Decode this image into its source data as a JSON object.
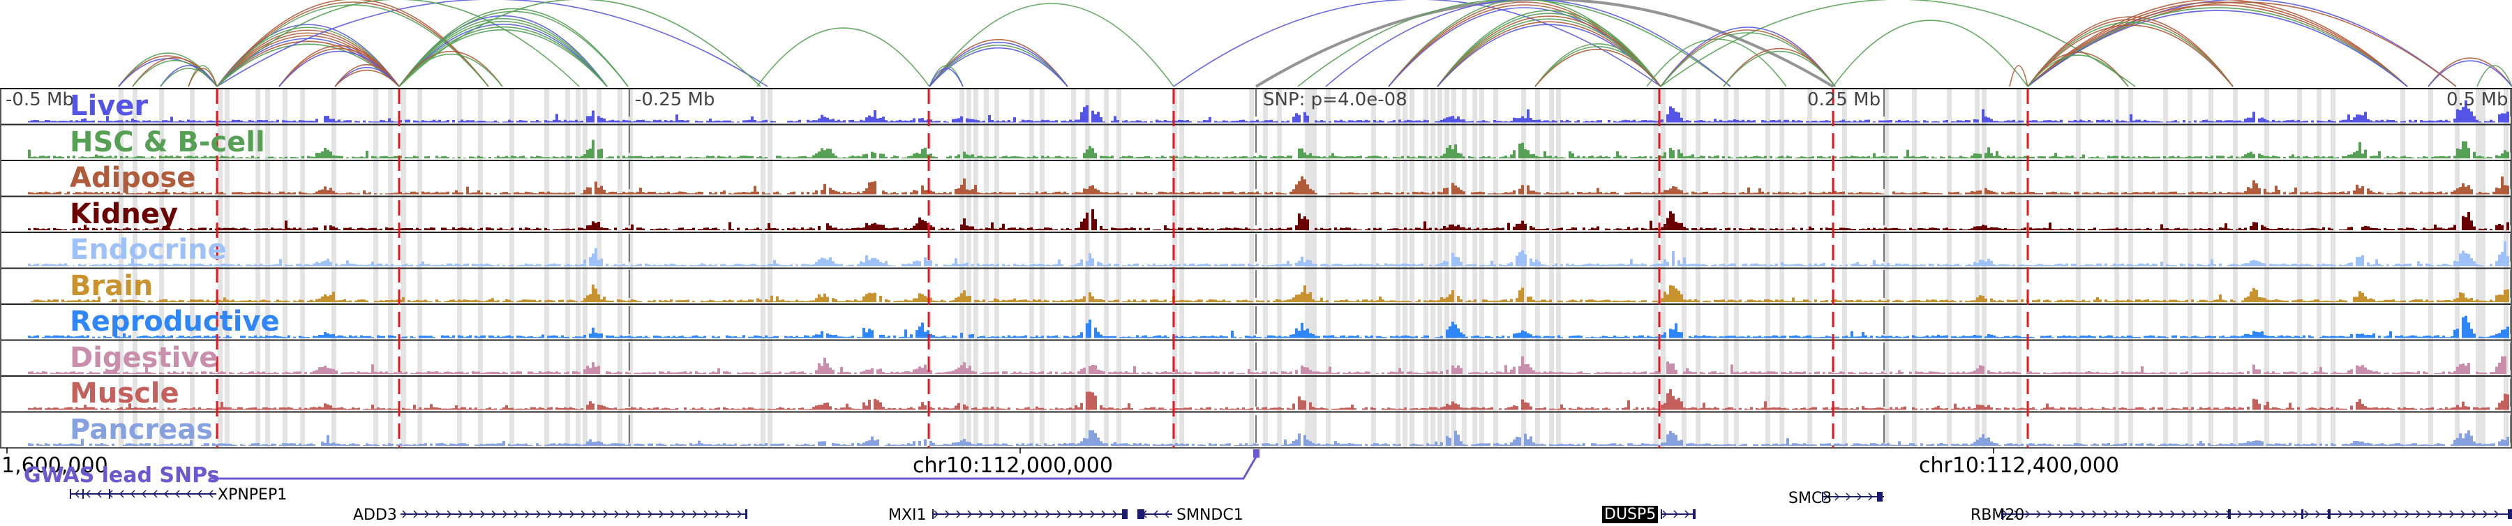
{
  "colors": {
    "highlight": "#e3e3e3",
    "red_dash": "#e8161b",
    "gray_dash": "#777777",
    "border": "#000000",
    "gwas": "#6a5acd",
    "gene": "#1c1c6e",
    "arc_colors": [
      "#5656e0",
      "#55a055",
      "#b05a3a",
      "#888888"
    ]
  },
  "scale_labels": [
    "-0.5 Mb",
    "-0.25 Mb",
    "SNP: p=4.0e-08",
    "0.25 Mb",
    "0.5 Mb"
  ],
  "coordinates": [
    "1,600,000",
    "chr10:112,000,000",
    "chr10:112,400,000"
  ],
  "gwas": {
    "label": "GWAS lead SNPs"
  },
  "tracks": [
    {
      "label": "Liver",
      "color": "#5454e6"
    },
    {
      "label": "HSC & B-cell",
      "color": "#55a055"
    },
    {
      "label": "Adipose",
      "color": "#b15b3b"
    },
    {
      "label": "Kidney",
      "color": "#6b0000"
    },
    {
      "label": "Endocrine",
      "color": "#9ec1f9"
    },
    {
      "label": "Brain",
      "color": "#c8922e"
    },
    {
      "label": "Reproductive",
      "color": "#2f86fa"
    },
    {
      "label": "Digestive",
      "color": "#c98eab"
    },
    {
      "label": "Muscle",
      "color": "#c4605b"
    },
    {
      "label": "Pancreas",
      "color": "#86a1e0"
    }
  ],
  "genes": [
    {
      "name": "XPNPEP1",
      "strand": "-",
      "highlighted": false
    },
    {
      "name": "ADD3",
      "strand": "+",
      "highlighted": false
    },
    {
      "name": "MXI1",
      "strand": "+",
      "highlighted": false
    },
    {
      "name": "SMNDC1",
      "strand": "-",
      "highlighted": false
    },
    {
      "name": "DUSP5",
      "strand": "+",
      "highlighted": true
    },
    {
      "name": "SMC3",
      "strand": "+",
      "highlighted": false
    },
    {
      "name": "RBM20",
      "strand": "+",
      "highlighted": false
    }
  ]
}
